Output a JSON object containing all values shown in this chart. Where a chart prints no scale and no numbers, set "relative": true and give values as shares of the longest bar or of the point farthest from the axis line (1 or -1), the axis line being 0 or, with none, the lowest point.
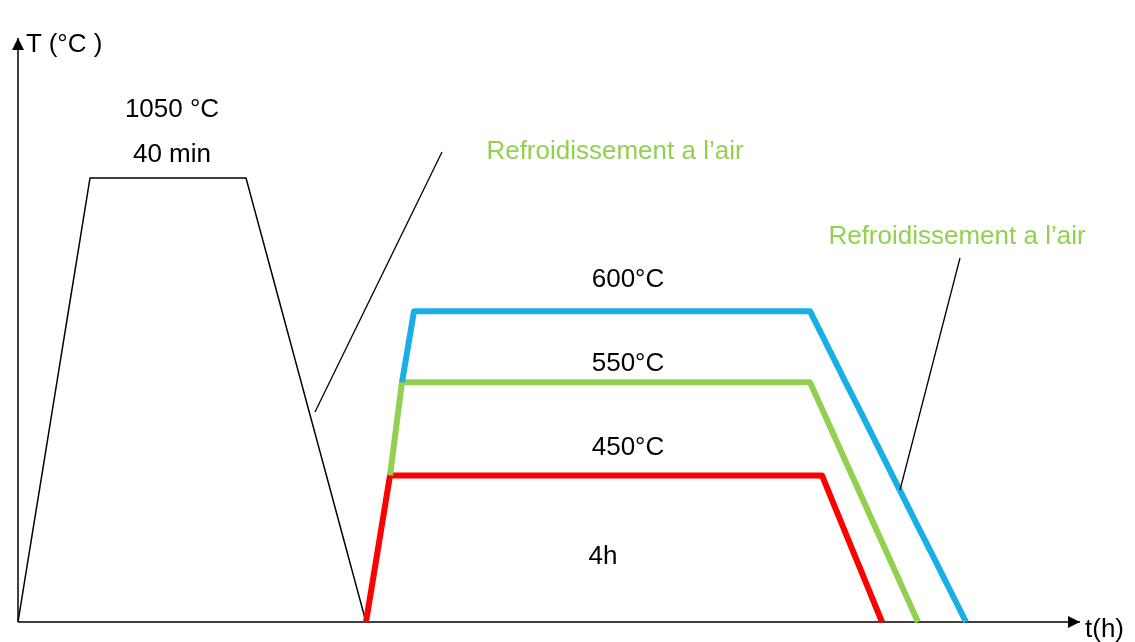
{
  "chart_data": {
    "type": "line",
    "relative": true,
    "xlabel": "t(h)",
    "ylabel": "T (°C )",
    "marker": "none",
    "line_style": "solid",
    "categories": [
      null,
      null,
      null,
      null,
      null,
      null,
      null,
      null,
      null,
      null,
      null,
      null,
      null,
      null,
      null,
      null,
      null,
      null,
      null,
      null,
      null,
      null,
      null,
      null,
      null,
      null,
      null,
      null,
      null,
      null,
      null,
      null,
      null,
      null,
      null,
      null,
      null,
      null,
      null,
      null,
      null,
      null,
      null,
      null,
      null,
      null,
      null,
      null,
      null,
      null,
      null,
      null,
      null,
      null,
      null,
      null,
      null,
      null,
      null,
      null,
      null,
      null,
      null,
      null,
      null,
      null,
      null,
      null,
      null,
      null,
      null,
      null,
      null,
      null,
      null,
      null,
      null,
      null,
      null,
      null
    ],
    "series": [
      {
        "color": "#000000",
        "values": [
          0,
          0.167,
          0.333,
          0.5,
          0.667,
          0.833,
          1,
          1,
          1,
          1,
          1,
          1,
          1,
          1,
          1,
          1,
          1,
          1,
          1,
          1,
          0.9,
          0.8,
          0.7,
          0.6,
          0.5,
          0.4,
          0.3,
          0.2,
          0.1,
          0,
          null,
          null,
          null,
          null,
          null,
          null,
          null,
          null,
          null,
          null,
          null,
          null,
          null,
          null,
          null,
          null,
          null,
          null,
          null,
          null,
          null,
          null,
          null,
          null,
          null,
          null,
          null,
          null,
          null,
          null,
          null,
          null,
          null,
          null,
          null,
          null,
          null,
          null,
          null,
          null,
          null,
          null,
          null,
          null,
          null,
          null,
          null,
          null,
          null,
          null
        ]
      },
      {
        "color": "#ff0000",
        "values": [
          null,
          null,
          null,
          null,
          null,
          null,
          null,
          null,
          null,
          null,
          null,
          null,
          null,
          null,
          null,
          null,
          null,
          null,
          null,
          null,
          null,
          null,
          null,
          null,
          null,
          null,
          null,
          null,
          null,
          0,
          0.165,
          0.33,
          0.33,
          0.33,
          0.33,
          0.33,
          0.33,
          0.33,
          0.33,
          0.33,
          0.33,
          0.33,
          0.33,
          0.33,
          0.33,
          0.33,
          0.33,
          0.33,
          0.33,
          0.33,
          0.33,
          0.33,
          0.33,
          0.33,
          0.33,
          0.33,
          0.33,
          0.33,
          0.33,
          0.33,
          0.33,
          0.33,
          0.33,
          0.33,
          0.33,
          0.33,
          0.33,
          0.33,
          0.264,
          0.198,
          0.132,
          0.066,
          0,
          null,
          null,
          null,
          null,
          null,
          null,
          null
        ]
      },
      {
        "color": "#92d050",
        "values": [
          null,
          null,
          null,
          null,
          null,
          null,
          null,
          null,
          null,
          null,
          null,
          null,
          null,
          null,
          null,
          null,
          null,
          null,
          null,
          null,
          null,
          null,
          null,
          null,
          null,
          null,
          null,
          null,
          null,
          null,
          null,
          0.33,
          0.54,
          0.54,
          0.54,
          0.54,
          0.54,
          0.54,
          0.54,
          0.54,
          0.54,
          0.54,
          0.54,
          0.54,
          0.54,
          0.54,
          0.54,
          0.54,
          0.54,
          0.54,
          0.54,
          0.54,
          0.54,
          0.54,
          0.54,
          0.54,
          0.54,
          0.54,
          0.54,
          0.54,
          0.54,
          0.54,
          0.54,
          0.54,
          0.54,
          0.54,
          0.54,
          0.48,
          0.42,
          0.36,
          0.3,
          0.24,
          0.18,
          0.12,
          0.06,
          0,
          null,
          null,
          null,
          null
        ]
      },
      {
        "color": "#1aaee6",
        "values": [
          null,
          null,
          null,
          null,
          null,
          null,
          null,
          null,
          null,
          null,
          null,
          null,
          null,
          null,
          null,
          null,
          null,
          null,
          null,
          null,
          null,
          null,
          null,
          null,
          null,
          null,
          null,
          null,
          null,
          null,
          null,
          null,
          0.54,
          0.7,
          0.7,
          0.7,
          0.7,
          0.7,
          0.7,
          0.7,
          0.7,
          0.7,
          0.7,
          0.7,
          0.7,
          0.7,
          0.7,
          0.7,
          0.7,
          0.7,
          0.7,
          0.7,
          0.7,
          0.7,
          0.7,
          0.7,
          0.7,
          0.7,
          0.7,
          0.7,
          0.7,
          0.7,
          0.7,
          0.7,
          0.7,
          0.7,
          0.7,
          0.646,
          0.592,
          0.538,
          0.485,
          0.431,
          0.377,
          0.323,
          0.269,
          0.215,
          0.162,
          0.108,
          0.054,
          0
        ]
      }
    ],
    "annotations": [
      "1050 °C",
      "40 min",
      "600°C",
      "550°C",
      "450°C",
      "4h",
      "Refroidissement a l’air",
      "Refroidissement a l’air"
    ]
  }
}
